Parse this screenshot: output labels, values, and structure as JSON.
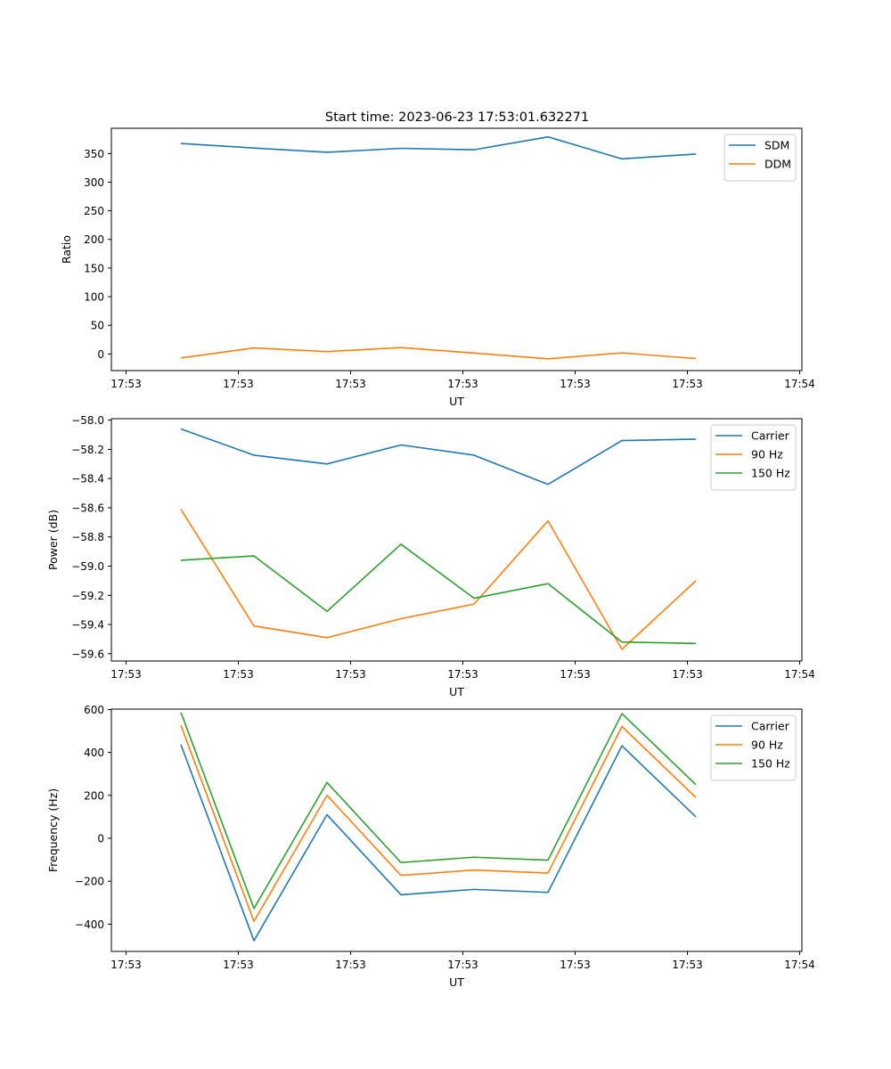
{
  "figure_title": "Start time: 2023-06-23 17:53:01.632271",
  "chart_data": [
    {
      "type": "line",
      "xlabel": "UT",
      "ylabel": "Ratio",
      "x_tick_labels": [
        "17:53",
        "17:53",
        "17:53",
        "17:53",
        "17:53",
        "17:53",
        "17:54"
      ],
      "y_ticks": [
        0,
        50,
        100,
        150,
        200,
        250,
        300,
        350
      ],
      "y_tick_labels": [
        "0",
        "50",
        "100",
        "150",
        "200",
        "250",
        "300",
        "350"
      ],
      "ylim": [
        -29,
        394
      ],
      "legend_position": "top-right",
      "series": [
        {
          "name": "SDM",
          "color": "#1f77b4",
          "values": [
            367.5,
            359.5,
            352.1,
            359.0,
            356.5,
            379.0,
            340.6,
            349.0
          ]
        },
        {
          "name": "DDM",
          "color": "#ff7f0e",
          "values": [
            -6.9,
            10.6,
            4.2,
            11.2,
            1.6,
            -8.5,
            1.9,
            -8.0
          ]
        }
      ]
    },
    {
      "type": "line",
      "xlabel": "UT",
      "ylabel": "Power (dB)",
      "x_tick_labels": [
        "17:53",
        "17:53",
        "17:53",
        "17:53",
        "17:53",
        "17:53",
        "17:54"
      ],
      "y_ticks": [
        -59.6,
        -59.4,
        -59.2,
        -59.0,
        -58.8,
        -58.6,
        -58.4,
        -58.2,
        -58.0
      ],
      "y_tick_labels": [
        "−59.6",
        "−59.4",
        "−59.2",
        "−59.0",
        "−58.8",
        "−58.6",
        "−58.4",
        "−58.2",
        "−58.0"
      ],
      "ylim": [
        -59.65,
        -57.99
      ],
      "legend_position": "top-right",
      "series": [
        {
          "name": "Carrier",
          "color": "#1f77b4",
          "values": [
            -58.06,
            -58.24,
            -58.3,
            -58.17,
            -58.24,
            -58.44,
            -58.14,
            -58.13
          ]
        },
        {
          "name": "90 Hz",
          "color": "#ff7f0e",
          "values": [
            -58.61,
            -59.41,
            -59.49,
            -59.36,
            -59.26,
            -58.69,
            -59.57,
            -59.1
          ]
        },
        {
          "name": "150 Hz",
          "color": "#2ca02c",
          "values": [
            -58.96,
            -58.93,
            -59.31,
            -58.85,
            -59.22,
            -59.12,
            -59.52,
            -59.53
          ]
        }
      ]
    },
    {
      "type": "line",
      "xlabel": "UT",
      "ylabel": "Frequency (Hz)",
      "x_tick_labels": [
        "17:53",
        "17:53",
        "17:53",
        "17:53",
        "17:53",
        "17:53",
        "17:54"
      ],
      "y_ticks": [
        -400,
        -200,
        0,
        200,
        400,
        600
      ],
      "y_tick_labels": [
        "−400",
        "−200",
        "0",
        "200",
        "400",
        "600"
      ],
      "ylim": [
        -527,
        602
      ],
      "legend_position": "top-right",
      "series": [
        {
          "name": "Carrier",
          "color": "#1f77b4",
          "values": [
            437,
            -477,
            110,
            -263,
            -238,
            -252,
            431,
            100
          ]
        },
        {
          "name": "90 Hz",
          "color": "#ff7f0e",
          "values": [
            527,
            -387,
            200,
            -173,
            -148,
            -162,
            521,
            190
          ]
        },
        {
          "name": "150 Hz",
          "color": "#2ca02c",
          "values": [
            587,
            -327,
            260,
            -113,
            -88,
            -102,
            581,
            250
          ]
        }
      ]
    }
  ]
}
